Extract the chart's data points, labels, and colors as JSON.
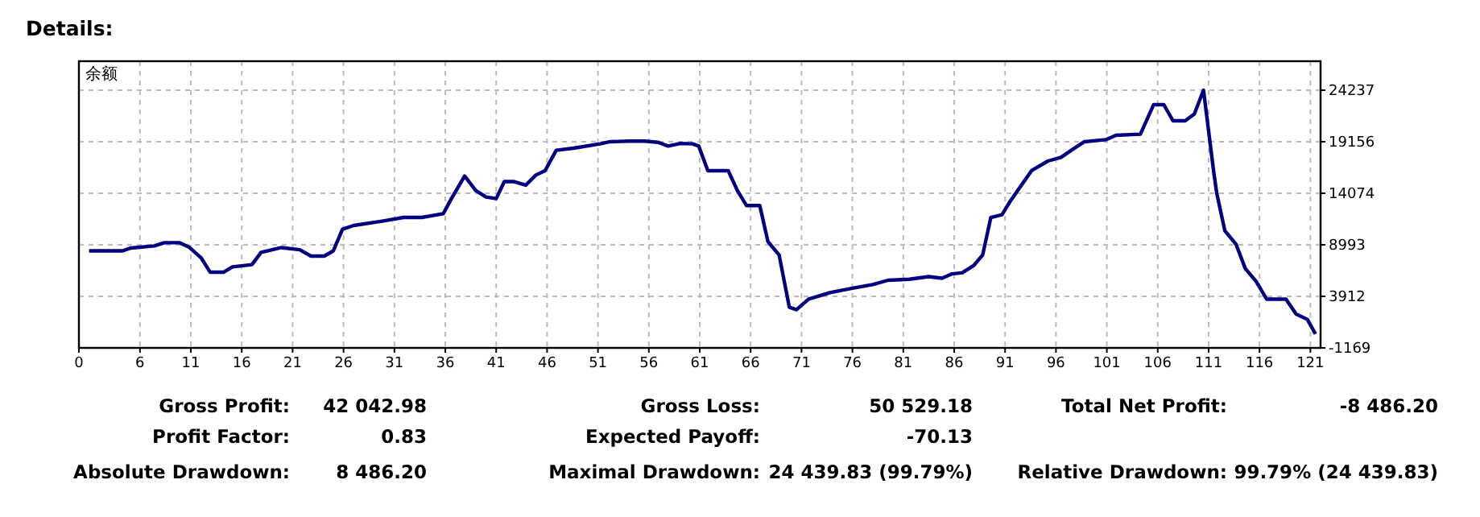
{
  "chart_data": {
    "type": "line",
    "title": "Details:",
    "xlim": [
      0,
      122
    ],
    "xticks": [
      0,
      6,
      11,
      16,
      21,
      26,
      31,
      36,
      41,
      46,
      51,
      56,
      61,
      66,
      71,
      76,
      81,
      86,
      91,
      96,
      101,
      106,
      111,
      116,
      121
    ],
    "ylim": [
      -1169,
      27095
    ],
    "yticks": [
      -1169,
      3912,
      8993,
      14074,
      19156,
      24237
    ],
    "grid": true,
    "marker": "none",
    "line_style": "solid",
    "series": [
      {
        "color": "#000080",
        "x": [
          1,
          4.3,
          5.1,
          7.4,
          8.4,
          9.9,
          10.8,
          12.0,
          12.9,
          14.2,
          15.1,
          17.0,
          17.9,
          19.9,
          21.7,
          22.8,
          24.1,
          25.0,
          25.9,
          27.0,
          29.8,
          31.9,
          33.7,
          35.8,
          36.6,
          37.9,
          39.0,
          40.0,
          41.0,
          41.8,
          42.7,
          43.9,
          44.9,
          45.8,
          46.9,
          48.6,
          51.2,
          52.2,
          54.0,
          55.6,
          56.9,
          57.9,
          59.1,
          60.3,
          60.9,
          61.8,
          63.8,
          64.7,
          65.6,
          66.9,
          67.7,
          68.8,
          69.8,
          70.5,
          71.7,
          73.8,
          75.9,
          78.0,
          79.5,
          81.6,
          83.5,
          84.8,
          85.8,
          86.8,
          87.9,
          88.8,
          89.6,
          90.7,
          91.5,
          93.6,
          95.2,
          96.5,
          97.5,
          98.8,
          100.9,
          101.9,
          104.3,
          105.6,
          106.6,
          107.5,
          108.7,
          109.6,
          110.5,
          111.5,
          111.8,
          112.6,
          113.7,
          114.6,
          115.7,
          116.7,
          118.6,
          119.6,
          120.7,
          121.5
        ],
        "values": [
          8400,
          8400,
          8680,
          8880,
          9200,
          9200,
          8780,
          7720,
          6290,
          6290,
          6820,
          7040,
          8250,
          8720,
          8510,
          7880,
          7880,
          8400,
          10530,
          10900,
          11330,
          11690,
          11690,
          12060,
          13550,
          15770,
          14340,
          13710,
          13550,
          15230,
          15230,
          14870,
          15870,
          16300,
          18310,
          18520,
          18950,
          19160,
          19210,
          19210,
          19100,
          18730,
          18990,
          18950,
          18730,
          16300,
          16300,
          14340,
          12860,
          12860,
          9310,
          7990,
          2850,
          2590,
          3640,
          4280,
          4700,
          5070,
          5500,
          5600,
          5860,
          5700,
          6130,
          6240,
          6930,
          7990,
          11690,
          11960,
          13280,
          16300,
          17250,
          17620,
          18310,
          19160,
          19360,
          19790,
          19900,
          22810,
          22810,
          21220,
          21220,
          21900,
          24237,
          16190,
          14070,
          10370,
          9040,
          6660,
          5340,
          3640,
          3640,
          2160,
          1640,
          200
        ]
      }
    ],
    "annotations": [
      "余额",
      "Gross Profit:",
      "42 042.98",
      "Gross Loss:",
      "50 529.18",
      "Total Net Profit:",
      "-8 486.20",
      "Profit Factor:",
      "0.83",
      "Expected Payoff:",
      "-70.13",
      "Absolute Drawdown:",
      "8 486.20",
      "Maximal Drawdown:",
      "24 439.83 (99.79%)",
      "Relative Drawdown:",
      "99.79% (24 439.83)"
    ]
  }
}
